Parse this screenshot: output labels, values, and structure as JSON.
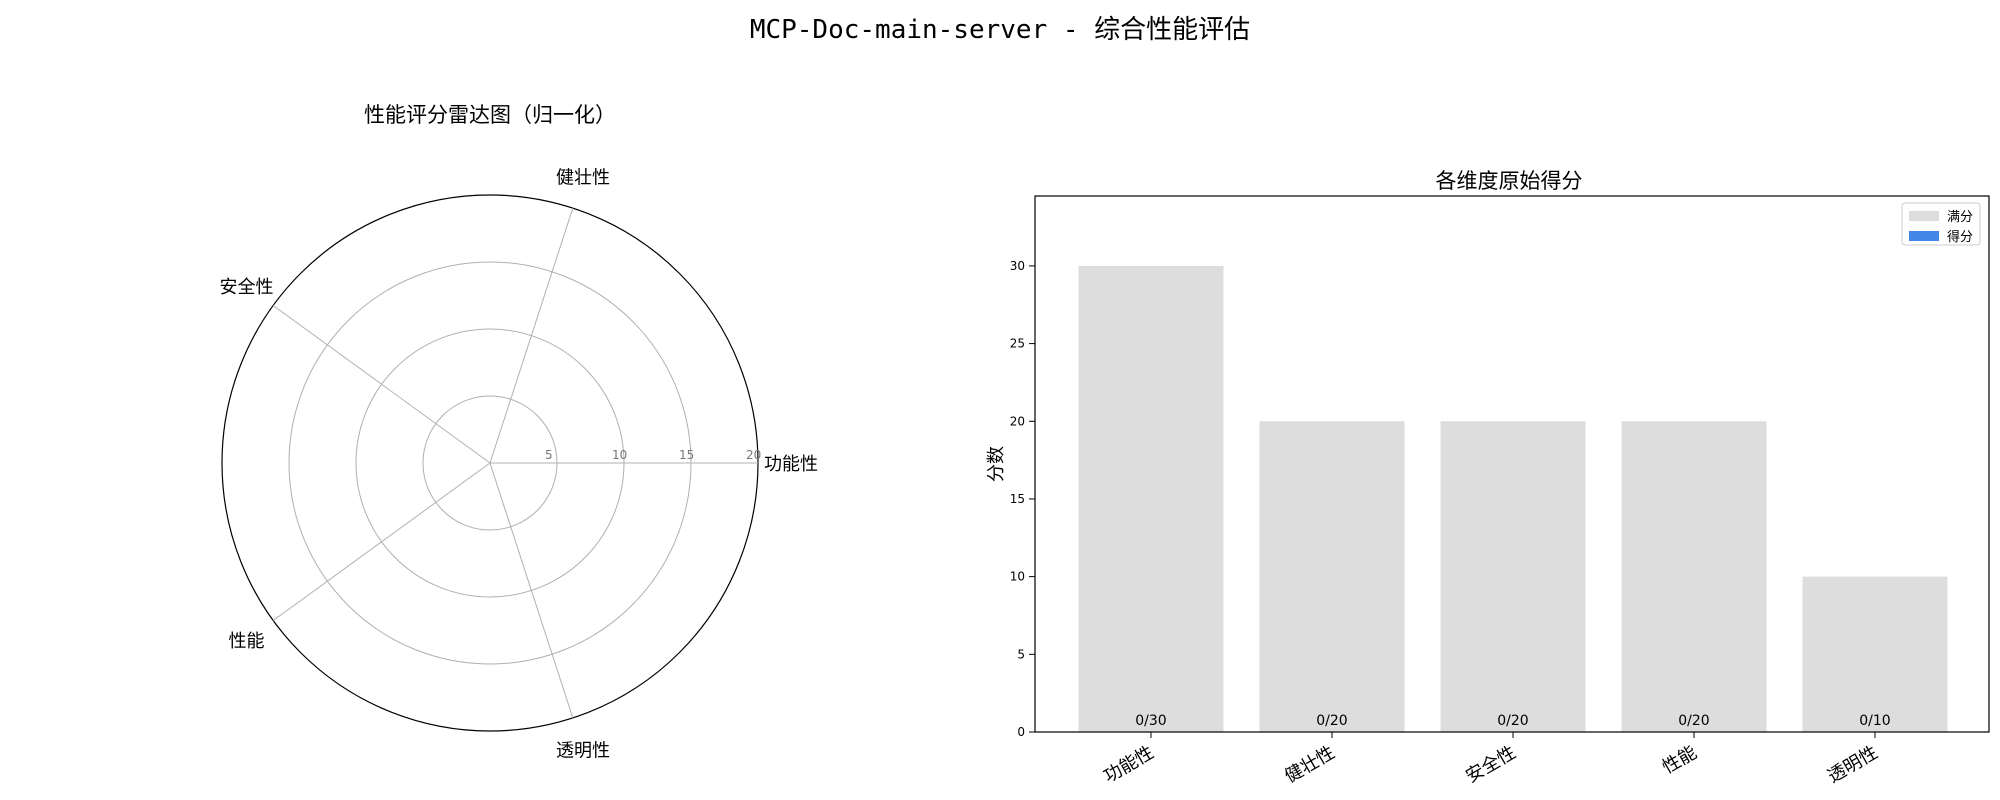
{
  "figure": {
    "title": "MCP-Doc-main-server - 综合性能评估"
  },
  "chart_data": [
    {
      "type": "radar",
      "title": "性能评分雷达图（归一化）",
      "axes": [
        "功能性",
        "健壮性",
        "安全性",
        "性能",
        "透明性"
      ],
      "values": [
        0,
        0,
        0,
        0,
        0
      ],
      "rlim": [
        0,
        20
      ],
      "rticks": [
        5,
        10,
        15,
        20
      ],
      "rtick_labels": [
        "5",
        "10",
        "15",
        "20"
      ],
      "grid": true
    },
    {
      "type": "bar",
      "title": "各维度原始得分",
      "categories": [
        "功能性",
        "健壮性",
        "安全性",
        "性能",
        "透明性"
      ],
      "series": [
        {
          "name": "满分",
          "values": [
            30,
            20,
            20,
            20,
            10
          ],
          "color": "#dddddd"
        },
        {
          "name": "得分",
          "values": [
            0,
            0,
            0,
            0,
            0
          ],
          "color": "#4287e8"
        }
      ],
      "data_labels": [
        "0/30",
        "0/20",
        "0/20",
        "0/20",
        "0/10"
      ],
      "xlabel": "",
      "ylabel": "分数",
      "ylim": [
        0,
        34.5
      ],
      "yticks": [
        0,
        5,
        10,
        15,
        20,
        25,
        30
      ],
      "legend": "top-right",
      "grid": false
    }
  ]
}
